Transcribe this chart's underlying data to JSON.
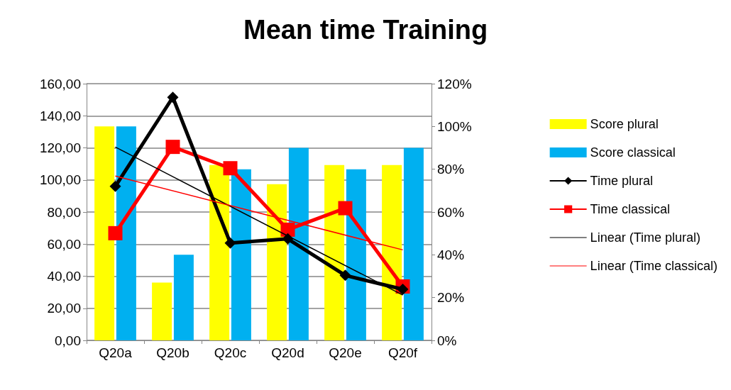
{
  "chart_data": {
    "type": "bar",
    "title": "Mean time Training",
    "categories": [
      "Q20a",
      "Q20b",
      "Q20c",
      "Q20d",
      "Q20e",
      "Q20f"
    ],
    "series": [
      {
        "name": "Score plural",
        "axis": "y2",
        "color": "#ffff00",
        "values": [
          100,
          27,
          82,
          73,
          82,
          82
        ]
      },
      {
        "name": "Score classical",
        "axis": "y2",
        "color": "#00b0f0",
        "values": [
          100,
          40,
          80,
          90,
          80,
          90
        ]
      },
      {
        "name": "Time plural",
        "type": "line",
        "color": "#000000",
        "marker": "diamond",
        "values": [
          96,
          151.5,
          60.7,
          63.3,
          40.5,
          31.8
        ]
      },
      {
        "name": "Time classical",
        "type": "line",
        "color": "#ff0000",
        "marker": "square",
        "values": [
          66.8,
          120.6,
          107.3,
          69,
          82.4,
          33.6
        ]
      },
      {
        "name": "Linear (Time plural)",
        "type": "line",
        "color": "#000000",
        "marker": "none",
        "x": [
          "Q20a",
          "Q20f"
        ],
        "values": [
          120.5,
          28.2
        ]
      },
      {
        "name": "Linear (Time classical)",
        "type": "line",
        "color": "#ff0000",
        "marker": "none",
        "x": [
          "Q20a",
          "Q20f"
        ],
        "values": [
          102.4,
          56.4
        ]
      }
    ],
    "ylim": [
      0,
      160
    ],
    "yticks": [
      {
        "value": 0,
        "label": "0,00"
      },
      {
        "value": 20,
        "label": "20,00"
      },
      {
        "value": 40,
        "label": "40,00"
      },
      {
        "value": 60,
        "label": "60,00"
      },
      {
        "value": 80,
        "label": "80,00"
      },
      {
        "value": 100,
        "label": "100,00"
      },
      {
        "value": 120,
        "label": "120,00"
      },
      {
        "value": 140,
        "label": "140,00"
      },
      {
        "value": 160,
        "label": "160,00"
      }
    ],
    "y2lim": [
      0,
      120
    ],
    "y2ticks": [
      {
        "value": 0,
        "label": "0%"
      },
      {
        "value": 20,
        "label": "20%"
      },
      {
        "value": 40,
        "label": "40%"
      },
      {
        "value": 60,
        "label": "60%"
      },
      {
        "value": 80,
        "label": "80%"
      },
      {
        "value": 100,
        "label": "100%"
      },
      {
        "value": 120,
        "label": "120%"
      }
    ],
    "grid": "y",
    "legend": "right"
  }
}
